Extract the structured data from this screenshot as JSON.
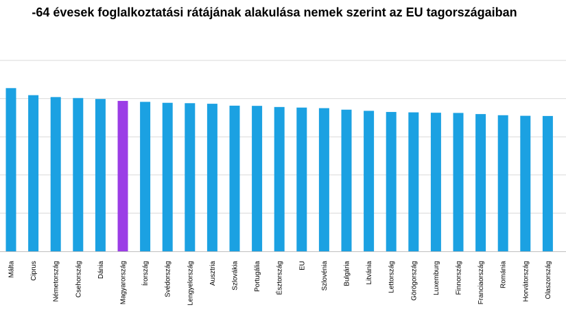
{
  "chart_data": {
    "type": "bar",
    "title": "-64 évesek foglalkoztatási rátájának alakulása nemek szerint az EU tagországaiban",
    "xlabel": "",
    "ylabel": "",
    "categories": [
      "Málta",
      "Ciprus",
      "Németország",
      "Csehország",
      "Dánia",
      "Magyarország",
      "Írország",
      "Svédország",
      "Lengyelország",
      "Ausztria",
      "Szlovákia",
      "Portugália",
      "Észtország",
      "EU",
      "Szlovénia",
      "Bulgária",
      "Litvánia",
      "Lettország",
      "Görögország",
      "Luxemburg",
      "Finnország",
      "Franciaország",
      "Románia",
      "Horvátország",
      "Olaszország"
    ],
    "values": [
      85.5,
      81.8,
      80.8,
      80.3,
      79.8,
      78.8,
      78.3,
      77.8,
      77.6,
      77.3,
      76.3,
      76.2,
      75.6,
      75.3,
      75.0,
      74.2,
      73.6,
      73.0,
      72.8,
      72.6,
      72.5,
      71.9,
      71.3,
      71.0,
      70.9
    ],
    "highlight_color": "#9b3de6",
    "bar_color": "#1ba1e2",
    "highlight_index": 5,
    "ylim": [
      0,
      100
    ],
    "grid": true,
    "legend": "none"
  }
}
